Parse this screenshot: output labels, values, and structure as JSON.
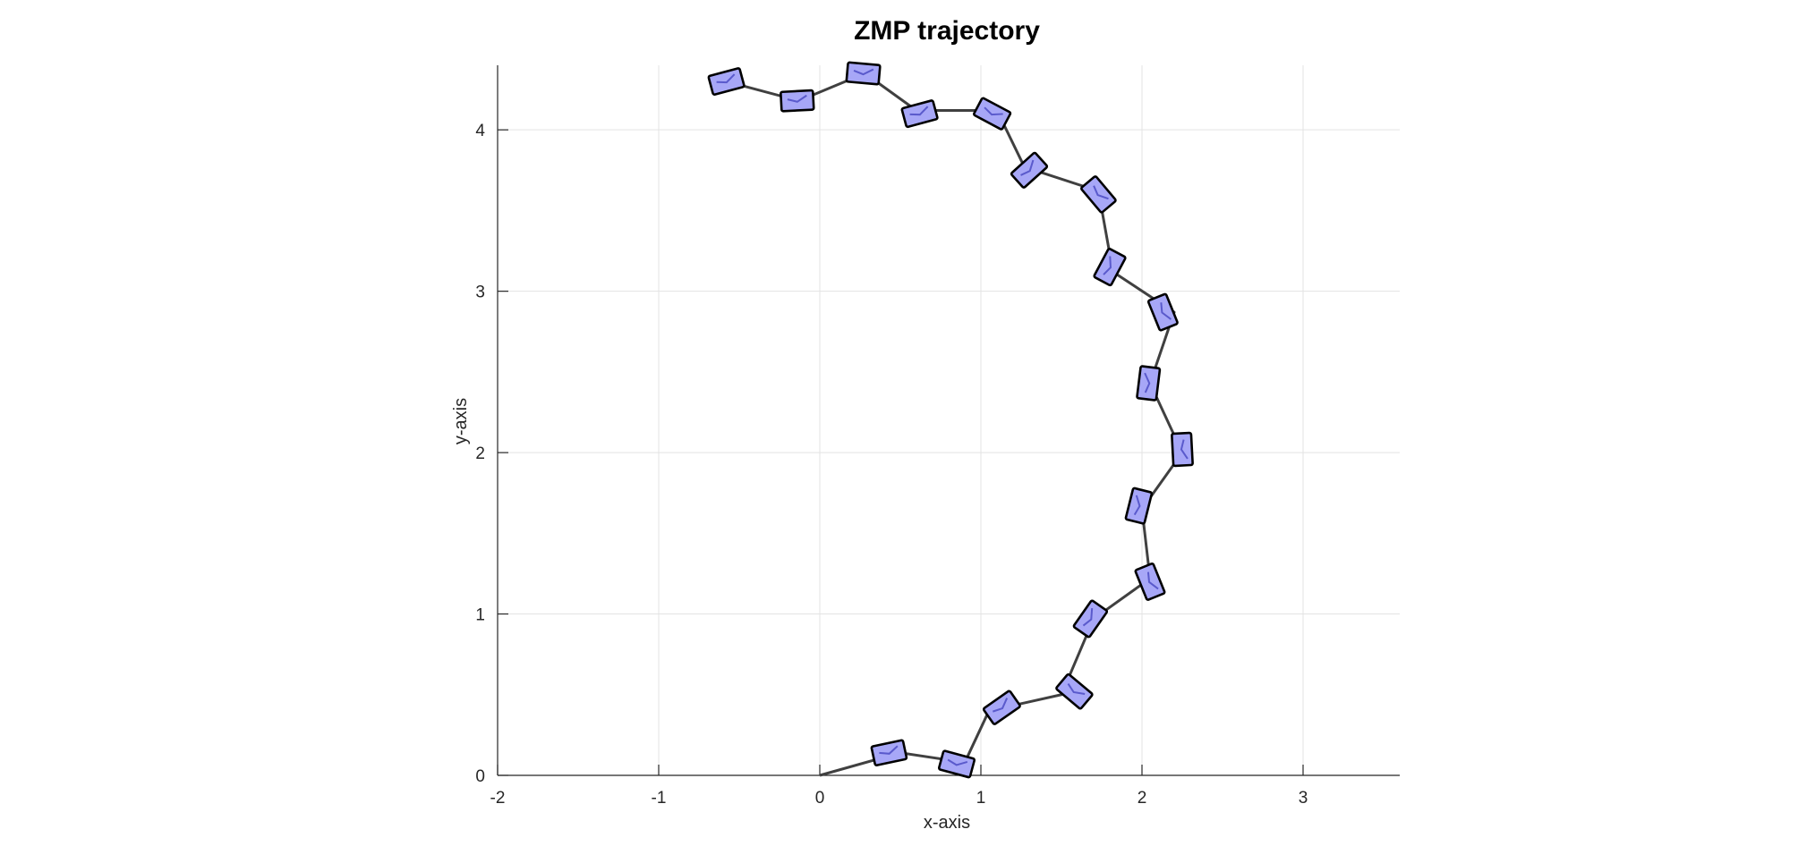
{
  "chart_data": {
    "type": "line",
    "title": "ZMP trajectory",
    "xlabel": "x-axis",
    "ylabel": "y-axis",
    "xlim": [
      -2,
      3.6
    ],
    "ylim": [
      0,
      4.4
    ],
    "xticks": [
      "-2",
      "-1",
      "0",
      "1",
      "2",
      "3"
    ],
    "yticks": [
      "0",
      "1",
      "2",
      "3",
      "4"
    ],
    "grid": true,
    "series": [
      {
        "type": "line",
        "color": "#404040",
        "points": [
          [
            0.0,
            0.0
          ],
          [
            0.5,
            0.14
          ],
          [
            0.9,
            0.08
          ],
          [
            1.05,
            0.4
          ],
          [
            1.5,
            0.5
          ],
          [
            1.7,
            0.97
          ],
          [
            2.05,
            1.22
          ],
          [
            2.0,
            1.65
          ],
          [
            2.25,
            2.0
          ],
          [
            2.05,
            2.43
          ],
          [
            2.2,
            2.87
          ],
          [
            1.82,
            3.12
          ],
          [
            1.73,
            3.62
          ],
          [
            1.27,
            3.77
          ],
          [
            1.1,
            4.12
          ],
          [
            0.6,
            4.12
          ],
          [
            0.28,
            4.35
          ],
          [
            -0.13,
            4.18
          ],
          [
            -0.58,
            4.3
          ]
        ]
      },
      {
        "type": "footprints",
        "fill": "#a7a7f7",
        "edge": "#000000",
        "footprints": [
          {
            "x": 0.43,
            "y": 0.14,
            "angle_deg": 12
          },
          {
            "x": 0.85,
            "y": 0.07,
            "angle_deg": -15
          },
          {
            "x": 1.13,
            "y": 0.42,
            "angle_deg": 35
          },
          {
            "x": 1.58,
            "y": 0.52,
            "angle_deg": -40
          },
          {
            "x": 1.68,
            "y": 0.97,
            "angle_deg": 55
          },
          {
            "x": 2.05,
            "y": 1.2,
            "angle_deg": -68
          },
          {
            "x": 1.98,
            "y": 1.67,
            "angle_deg": 76
          },
          {
            "x": 2.25,
            "y": 2.02,
            "angle_deg": -87
          },
          {
            "x": 2.04,
            "y": 2.43,
            "angle_deg": 83
          },
          {
            "x": 2.13,
            "y": 2.87,
            "angle_deg": -68
          },
          {
            "x": 1.8,
            "y": 3.15,
            "angle_deg": 62
          },
          {
            "x": 1.73,
            "y": 3.6,
            "angle_deg": -50
          },
          {
            "x": 1.3,
            "y": 3.75,
            "angle_deg": 42
          },
          {
            "x": 1.07,
            "y": 4.1,
            "angle_deg": -28
          },
          {
            "x": 0.62,
            "y": 4.1,
            "angle_deg": 15
          },
          {
            "x": 0.27,
            "y": 4.35,
            "angle_deg": -5
          },
          {
            "x": -0.14,
            "y": 4.18,
            "angle_deg": 3
          },
          {
            "x": -0.58,
            "y": 4.3,
            "angle_deg": 15
          }
        ]
      }
    ]
  }
}
